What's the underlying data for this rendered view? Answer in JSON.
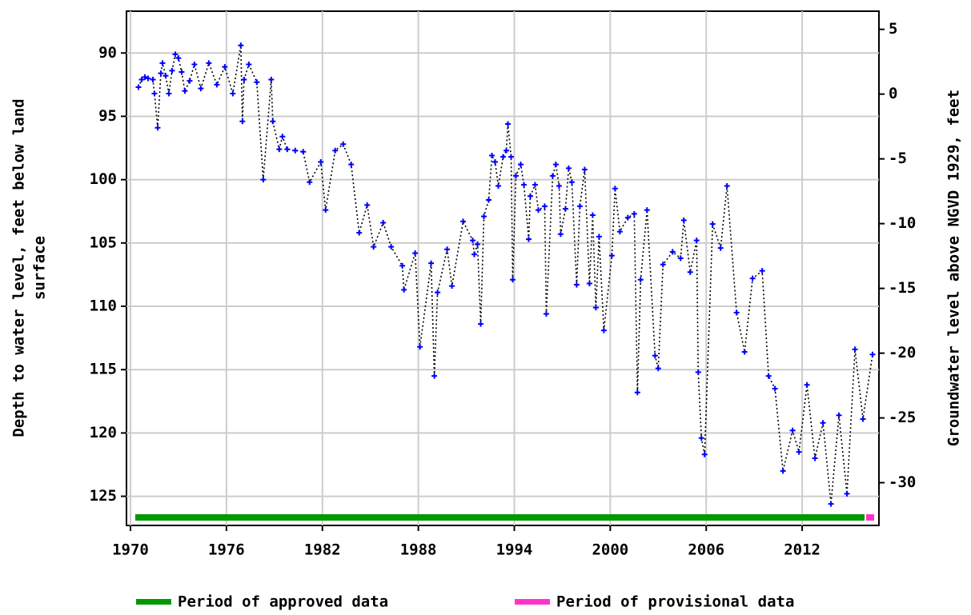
{
  "chart_data": {
    "type": "line",
    "ylabel": [
      "Depth to water level, feet below land",
      "surface"
    ],
    "y2label": "Groundwater level above NGVD 1929, feet",
    "xlim": [
      1969.75,
      2016.8
    ],
    "xticks": [
      1970,
      1976,
      1982,
      1988,
      1994,
      2000,
      2006,
      2012
    ],
    "ylim": [
      86.7,
      127.3
    ],
    "y_inverted": true,
    "yticks": [
      90,
      95,
      100,
      105,
      110,
      115,
      120,
      125
    ],
    "y2lim": [
      -33.3,
      6.4
    ],
    "y2ticks": [
      5,
      0,
      -5,
      -10,
      -15,
      -20,
      -25,
      -30
    ],
    "grid": true,
    "line_color": "#000000",
    "line_style": "dotted",
    "series": [
      {
        "color": "#0000ff",
        "x": [
          1970.5,
          1970.7,
          1970.9,
          1971.1,
          1971.4,
          1971.5,
          1971.7,
          1971.9,
          1972.0,
          1972.2,
          1972.4,
          1972.6,
          1972.8,
          1973.0,
          1973.2,
          1973.4,
          1973.7,
          1974.0,
          1974.4,
          1974.9,
          1975.4,
          1975.9,
          1976.4,
          1976.9,
          1977.0,
          1977.1,
          1977.4,
          1977.9,
          1978.3,
          1978.8,
          1978.9,
          1979.3,
          1979.5,
          1979.8,
          1980.3,
          1980.8,
          1981.2,
          1981.9,
          1982.2,
          1982.8,
          1983.3,
          1983.8,
          1984.3,
          1984.8,
          1985.2,
          1985.8,
          1986.3,
          1987.0,
          1987.1,
          1987.8,
          1988.1,
          1988.8,
          1989.0,
          1989.2,
          1989.8,
          1990.1,
          1990.8,
          1991.4,
          1991.5,
          1991.7,
          1991.9,
          1992.1,
          1992.4,
          1992.6,
          1992.8,
          1993.0,
          1993.3,
          1993.5,
          1993.6,
          1993.8,
          1993.9,
          1994.1,
          1994.4,
          1994.6,
          1994.9,
          1995.0,
          1995.3,
          1995.5,
          1995.9,
          1996.0,
          1996.4,
          1996.6,
          1996.8,
          1996.9,
          1997.2,
          1997.4,
          1997.6,
          1997.9,
          1998.1,
          1998.4,
          1998.7,
          1998.9,
          1999.1,
          1999.3,
          1999.6,
          2000.1,
          2000.3,
          2000.6,
          2001.1,
          2001.5,
          2001.7,
          2001.9,
          2002.3,
          2002.8,
          2003.0,
          2003.3,
          2003.9,
          2004.4,
          2004.6,
          2005.0,
          2005.4,
          2005.5,
          2005.7,
          2005.9,
          2006.4,
          2006.9,
          2007.3,
          2007.9,
          2008.4,
          2008.9,
          2009.5,
          2009.9,
          2010.3,
          2010.8,
          2011.4,
          2011.8,
          2012.3,
          2012.8,
          2013.3,
          2013.8,
          2014.3,
          2014.8,
          2015.3,
          2015.8,
          2016.4
        ],
        "values": [
          92.7,
          92.1,
          91.9,
          92.0,
          92.1,
          93.2,
          95.9,
          91.6,
          90.8,
          91.8,
          93.2,
          91.4,
          90.1,
          90.4,
          91.5,
          93.0,
          92.2,
          90.9,
          92.8,
          90.8,
          92.5,
          91.1,
          93.2,
          89.4,
          95.4,
          92.1,
          90.9,
          92.3,
          100.0,
          92.1,
          95.4,
          97.6,
          96.6,
          97.6,
          97.7,
          97.8,
          100.2,
          98.6,
          102.4,
          97.7,
          97.2,
          98.8,
          104.2,
          102.0,
          105.3,
          103.4,
          105.3,
          106.8,
          108.7,
          105.8,
          113.2,
          106.6,
          115.5,
          108.9,
          105.5,
          108.4,
          103.3,
          104.8,
          105.9,
          105.1,
          111.4,
          102.9,
          101.6,
          98.1,
          98.6,
          100.5,
          98.2,
          97.7,
          95.6,
          98.2,
          107.9,
          99.7,
          98.8,
          100.4,
          104.7,
          101.3,
          100.4,
          102.4,
          102.1,
          110.6,
          99.7,
          98.8,
          100.5,
          104.3,
          102.3,
          99.1,
          100.2,
          108.3,
          102.1,
          99.2,
          108.2,
          102.8,
          110.1,
          104.5,
          111.9,
          106.0,
          100.7,
          104.1,
          103.0,
          102.7,
          116.8,
          107.9,
          102.4,
          113.9,
          114.9,
          106.7,
          105.7,
          106.2,
          103.2,
          107.3,
          104.8,
          115.2,
          120.4,
          121.7,
          103.5,
          105.4,
          100.5,
          110.5,
          113.6,
          107.8,
          107.2,
          115.5,
          116.5,
          123.0,
          119.8,
          121.5,
          116.2,
          122.0,
          119.2,
          125.6,
          118.6,
          124.8,
          113.4,
          118.9,
          113.8
        ]
      }
    ],
    "periods": [
      {
        "name": "Period of approved data",
        "color": "#009900",
        "start": 1970.3,
        "end": 2015.9
      },
      {
        "name": "Period of provisional data",
        "color": "#ff33cc",
        "start": 2016.0,
        "end": 2016.5
      }
    ]
  }
}
